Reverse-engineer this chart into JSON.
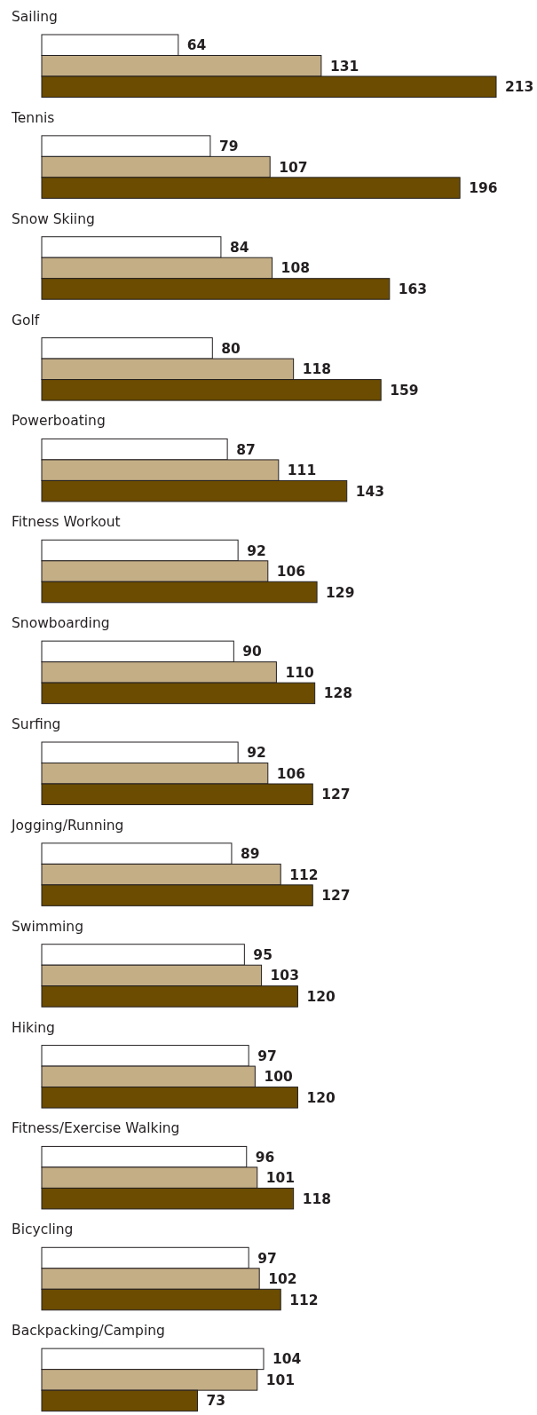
{
  "chart_data": {
    "type": "bar",
    "orientation": "horizontal",
    "data_labels": true,
    "categories": [
      "Sailing",
      "Tennis",
      "Snow Skiing",
      "Golf",
      "Powerboating",
      "Fitness Workout",
      "Snowboarding",
      "Surfing",
      "Jogging/Running",
      "Swimming",
      "Hiking",
      "Fitness/Exercise Walking",
      "Bicycling",
      "Backpacking/Camping"
    ],
    "series": [
      {
        "color": "#ffffff",
        "values": [
          64,
          79,
          84,
          80,
          87,
          92,
          90,
          92,
          89,
          95,
          97,
          96,
          97,
          104
        ]
      },
      {
        "color": "#c4ae86",
        "values": [
          131,
          107,
          108,
          118,
          111,
          106,
          110,
          106,
          112,
          103,
          100,
          101,
          102,
          101
        ]
      },
      {
        "color": "#6b4c00",
        "values": [
          213,
          196,
          163,
          159,
          143,
          129,
          128,
          127,
          127,
          120,
          120,
          118,
          112,
          73
        ]
      }
    ]
  }
}
